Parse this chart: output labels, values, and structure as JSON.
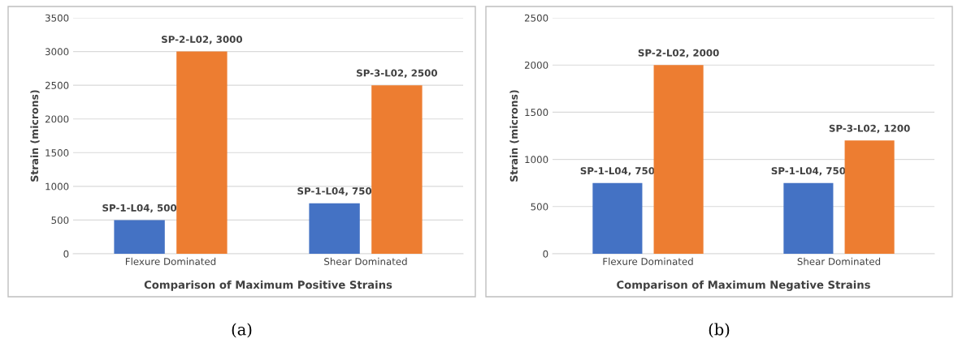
{
  "chart_data": [
    {
      "type": "bar",
      "categories": [
        "Flexure Dominated",
        "Shear Dominated"
      ],
      "xlabel": "Comparison of Maximum Positive Strains",
      "ylabel": "Strain (microns)",
      "ylim": [
        0,
        3500
      ],
      "yticks": [
        0,
        500,
        1000,
        1500,
        2000,
        2500,
        3000,
        3500
      ],
      "grid": "y",
      "annotations": [
        "(a)"
      ],
      "series": [
        {
          "color": "#4472c4",
          "values": [
            500,
            750
          ],
          "value_labels": [
            "SP-1-L04, 500",
            "SP-1-L04, 750"
          ]
        },
        {
          "color": "#ed7d31",
          "values": [
            3000,
            2500
          ],
          "value_labels": [
            "SP-2-L02, 3000",
            "SP-3-L02, 2500"
          ]
        }
      ]
    },
    {
      "type": "bar",
      "categories": [
        "Flexure Dominated",
        "Shear Dominated"
      ],
      "xlabel": "Comparison of Maximum Negative Strains",
      "ylabel": "Strain (microns)",
      "ylim": [
        0,
        2500
      ],
      "yticks": [
        0,
        500,
        1000,
        1500,
        2000,
        2500
      ],
      "grid": "y",
      "annotations": [
        "(b)"
      ],
      "series": [
        {
          "color": "#4472c4",
          "values": [
            750,
            750
          ],
          "value_labels": [
            "SP-1-L04, 750",
            "SP-1-L04, 750"
          ]
        },
        {
          "color": "#ed7d31",
          "values": [
            2000,
            1200
          ],
          "value_labels": [
            "SP-2-L02, 2000",
            "SP-3-L02, 1200"
          ]
        }
      ]
    }
  ]
}
